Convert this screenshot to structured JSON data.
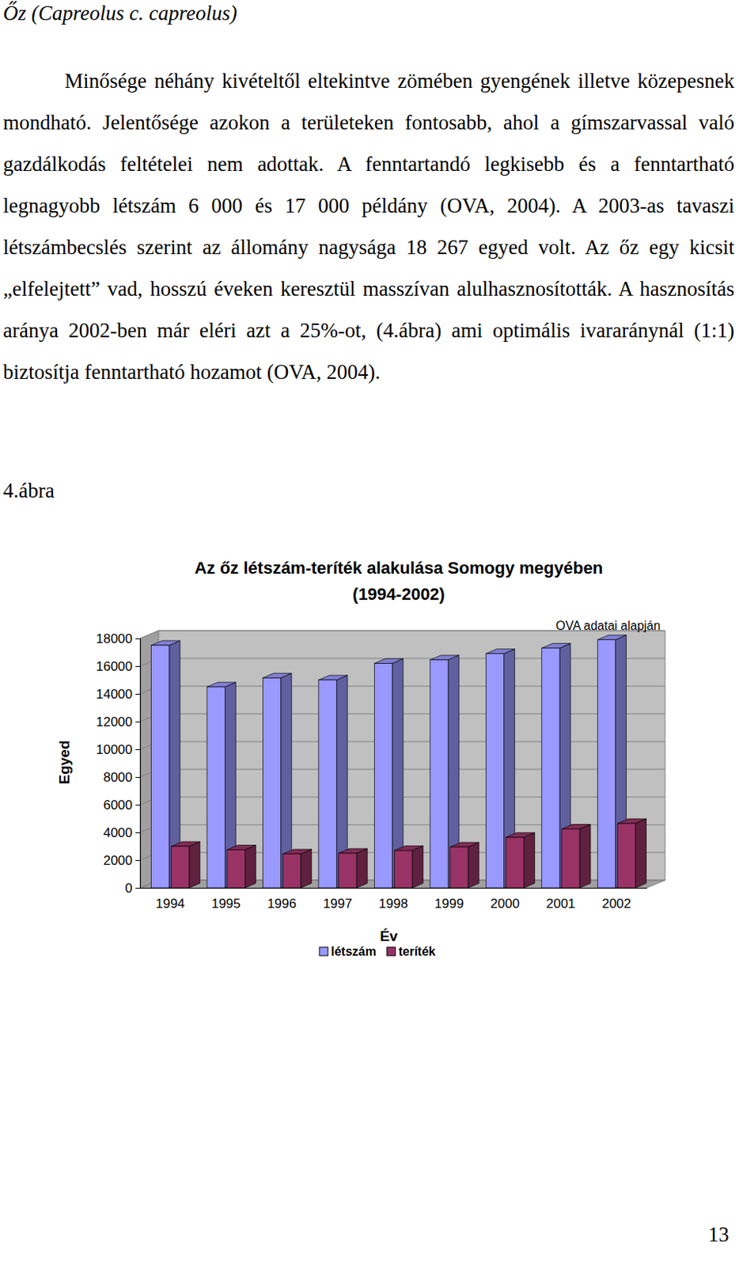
{
  "heading": "Őz (Capreolus c. capreolus)",
  "paragraph": "Minősége néhány kivételtől eltekintve zömében gyengének illetve közepesnek mondható. Jelentősége azokon a területeken fontosabb, ahol a gímszarvassal való gazdálkodás feltételei nem adottak. A fenntartandó legkisebb és a fenntartható legnagyobb létszám 6 000 és 17 000 példány (OVA, 2004). A 2003-as tavaszi létszámbecslés szerint az állomány nagysága 18 267 egyed volt. Az őz egy kicsit „elfelejtett” vad, hosszú éveken keresztül masszívan alulhasznosították. A hasznosítás aránya 2002-ben már eléri azt a 25%-ot, (4.ábra) ami optimális ivararánynál (1:1) biztosítja fenntartható hozamot (OVA, 2004).",
  "figure_label": "4.ábra",
  "page_number": "13",
  "chart_data": {
    "type": "bar",
    "title": "Az őz létszám-teríték alakulása Somogy megyében (1994-2002)",
    "annotation": "OVA adatai alapján",
    "x_label": "Év",
    "y_label": "Egyed",
    "categories": [
      "1994",
      "1995",
      "1996",
      "1997",
      "1998",
      "1999",
      "2000",
      "2001",
      "2002"
    ],
    "series": [
      {
        "name": "létszám",
        "color": "#9999ff",
        "values": [
          17500,
          14500,
          15150,
          15000,
          16200,
          16450,
          16900,
          17300,
          17900
        ]
      },
      {
        "name": "teríték",
        "color": "#993366",
        "values": [
          3000,
          2750,
          2450,
          2500,
          2700,
          2950,
          3650,
          4250,
          4650
        ]
      }
    ],
    "ylim": [
      0,
      18000
    ],
    "yticks": [
      0,
      2000,
      4000,
      6000,
      8000,
      10000,
      12000,
      14000,
      16000,
      18000
    ],
    "grid": true,
    "legend": "bottom"
  }
}
